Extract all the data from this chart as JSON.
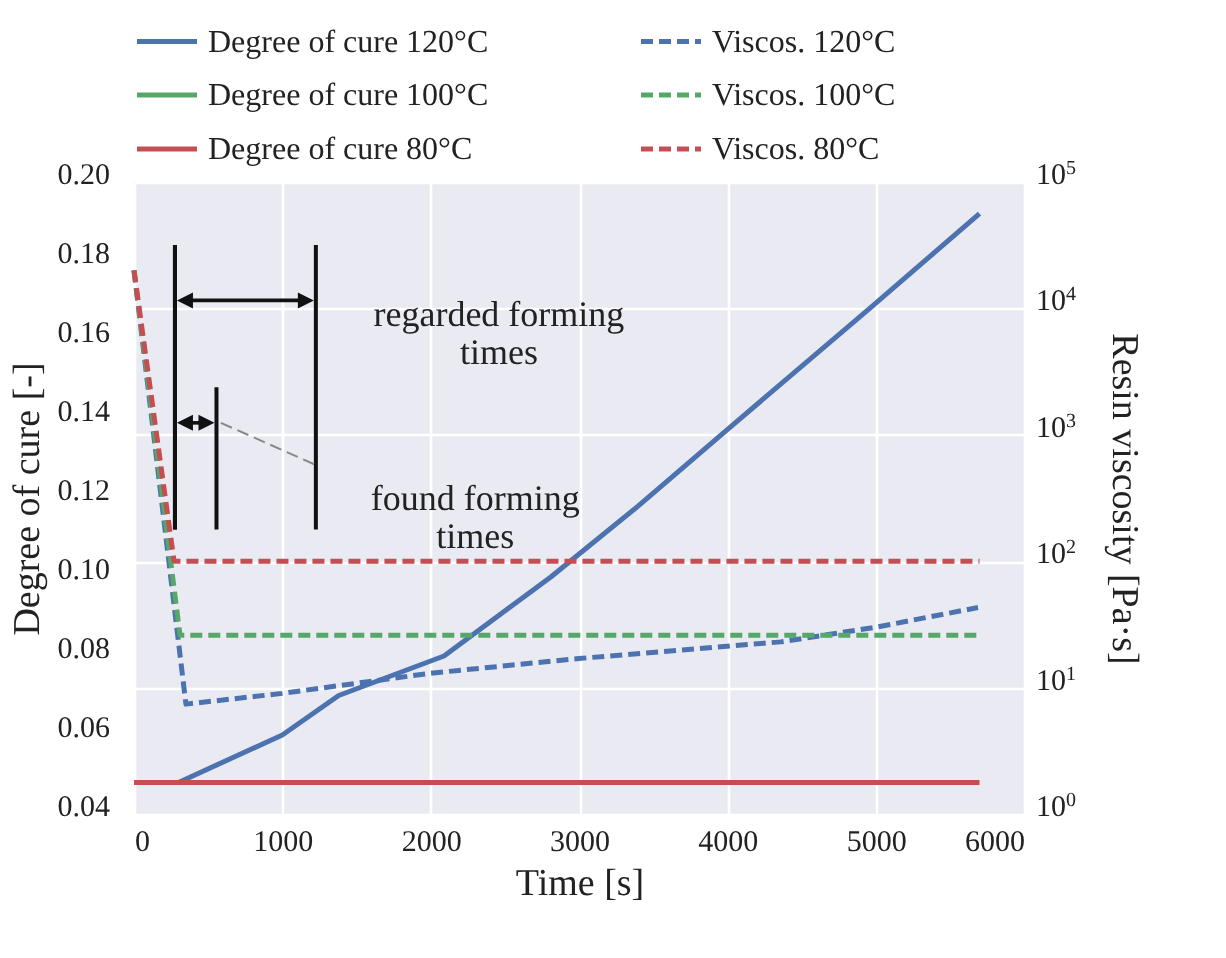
{
  "chart_data": {
    "type": "line",
    "xlabel": "Time [s]",
    "ylabel": "Degree of cure [-]",
    "y2label": "Resin viscosity [Pa·s]",
    "xlim": [
      0,
      6000
    ],
    "xticks": [
      0,
      1000,
      2000,
      3000,
      4000,
      5000,
      6000
    ],
    "ylim": [
      0.04,
      0.2
    ],
    "yticks": [
      {
        "value": 0.04,
        "label": "0.04"
      },
      {
        "value": 0.06,
        "label": "0.06"
      },
      {
        "value": 0.08,
        "label": "0.08"
      },
      {
        "value": 0.1,
        "label": "0.10"
      },
      {
        "value": 0.12,
        "label": "0.12"
      },
      {
        "value": 0.14,
        "label": "0.14"
      },
      {
        "value": 0.16,
        "label": "0.16"
      },
      {
        "value": 0.18,
        "label": "0.18"
      },
      {
        "value": 0.2,
        "label": "0.20"
      }
    ],
    "y2lim": [
      1,
      100000
    ],
    "y2ticks": [
      {
        "value": 1,
        "label": "10$^{0}$"
      },
      {
        "value": 10,
        "label": "10$^{1}$"
      },
      {
        "value": 100,
        "label": "10$^{2}$"
      },
      {
        "value": 1000,
        "label": "10$^{3}$"
      },
      {
        "value": 10000,
        "label": "10$^{4}$"
      },
      {
        "value": 100000,
        "label": "10$^{5}$"
      }
    ],
    "log": "y2",
    "grid": true,
    "legend": "top",
    "series": [
      {
        "name": "Degree of cure 120°C",
        "color": "#4c72b0",
        "line_style": "solid",
        "x": [
          300,
          1000,
          1380,
          2090,
          2810,
          3400,
          3990,
          4960,
          5700
        ],
        "values": [
          0.048,
          0.06,
          0.07,
          0.08,
          0.1,
          0.118,
          0.137,
          0.168,
          0.192
        ]
      },
      {
        "name": "Degree of cure 100°C",
        "color": "#55a868",
        "line_style": "solid"
      },
      {
        "name": "Degree of cure 80°C",
        "color": "#c44e52",
        "line_style": "solid",
        "x": [
          0,
          5700
        ],
        "values": [
          0.048,
          0.048
        ]
      },
      {
        "name": "Viscos. 120°C",
        "color": "#4c72b0",
        "line_style": "dashed",
        "axis": "y2",
        "x": [
          0,
          350,
          1000,
          2000,
          3000,
          4360,
          5000,
          5690
        ],
        "values": [
          20000,
          7.4,
          9,
          13,
          17,
          23,
          30,
          43
        ]
      },
      {
        "name": "Viscos. 100°C",
        "color": "#55a868",
        "line_style": "dashed",
        "axis": "y2",
        "x": [
          0,
          310,
          5700
        ],
        "values": [
          20000,
          26,
          26
        ]
      },
      {
        "name": "Viscos. 80°C",
        "color": "#c44e52",
        "line_style": "dashed",
        "axis": "y2",
        "x": [
          0,
          270,
          5700
        ],
        "values": [
          20000,
          100,
          100
        ]
      }
    ],
    "annotations": [
      "regarded forming times",
      "found forming times"
    ]
  }
}
